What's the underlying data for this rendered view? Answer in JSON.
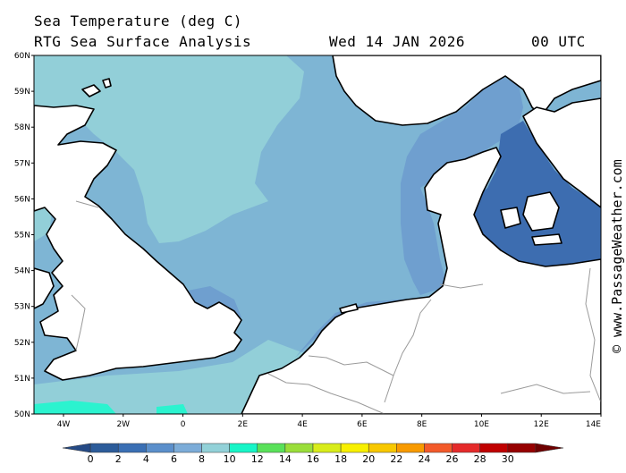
{
  "header": {
    "title_line1": "Sea Temperature (deg C)",
    "title_line2": "RTG Sea Surface Analysis",
    "date": "Wed 14 JAN 2026",
    "time": "00 UTC"
  },
  "credit": "© www.PassageWeather.com",
  "map": {
    "lat_labels": [
      "60N",
      "59N",
      "58N",
      "57N",
      "56N",
      "55N",
      "54N",
      "53N",
      "52N",
      "51N",
      "50N"
    ],
    "lon_labels": [
      "4W",
      "2W",
      "0",
      "2E",
      "4E",
      "6E",
      "8E",
      "10E",
      "12E",
      "14E"
    ],
    "land_color": "#ffffff",
    "coast_color": "#000000",
    "border_color": "#9a9a9a"
  },
  "legend": {
    "values": [
      "0",
      "2",
      "4",
      "6",
      "8",
      "10",
      "12",
      "14",
      "16",
      "18",
      "20",
      "22",
      "24",
      "26",
      "28",
      "30"
    ],
    "colors": [
      "#254a85",
      "#2c5c9a",
      "#3a6fb4",
      "#5b8fcb",
      "#7cacd8",
      "#92d1d8",
      "#17f5c7",
      "#5ae15a",
      "#9ade3a",
      "#d8ec1a",
      "#f8f000",
      "#f8c800",
      "#f89a00",
      "#f35a2a",
      "#e52a2a",
      "#c00000",
      "#960000",
      "#6e0000"
    ]
  }
}
